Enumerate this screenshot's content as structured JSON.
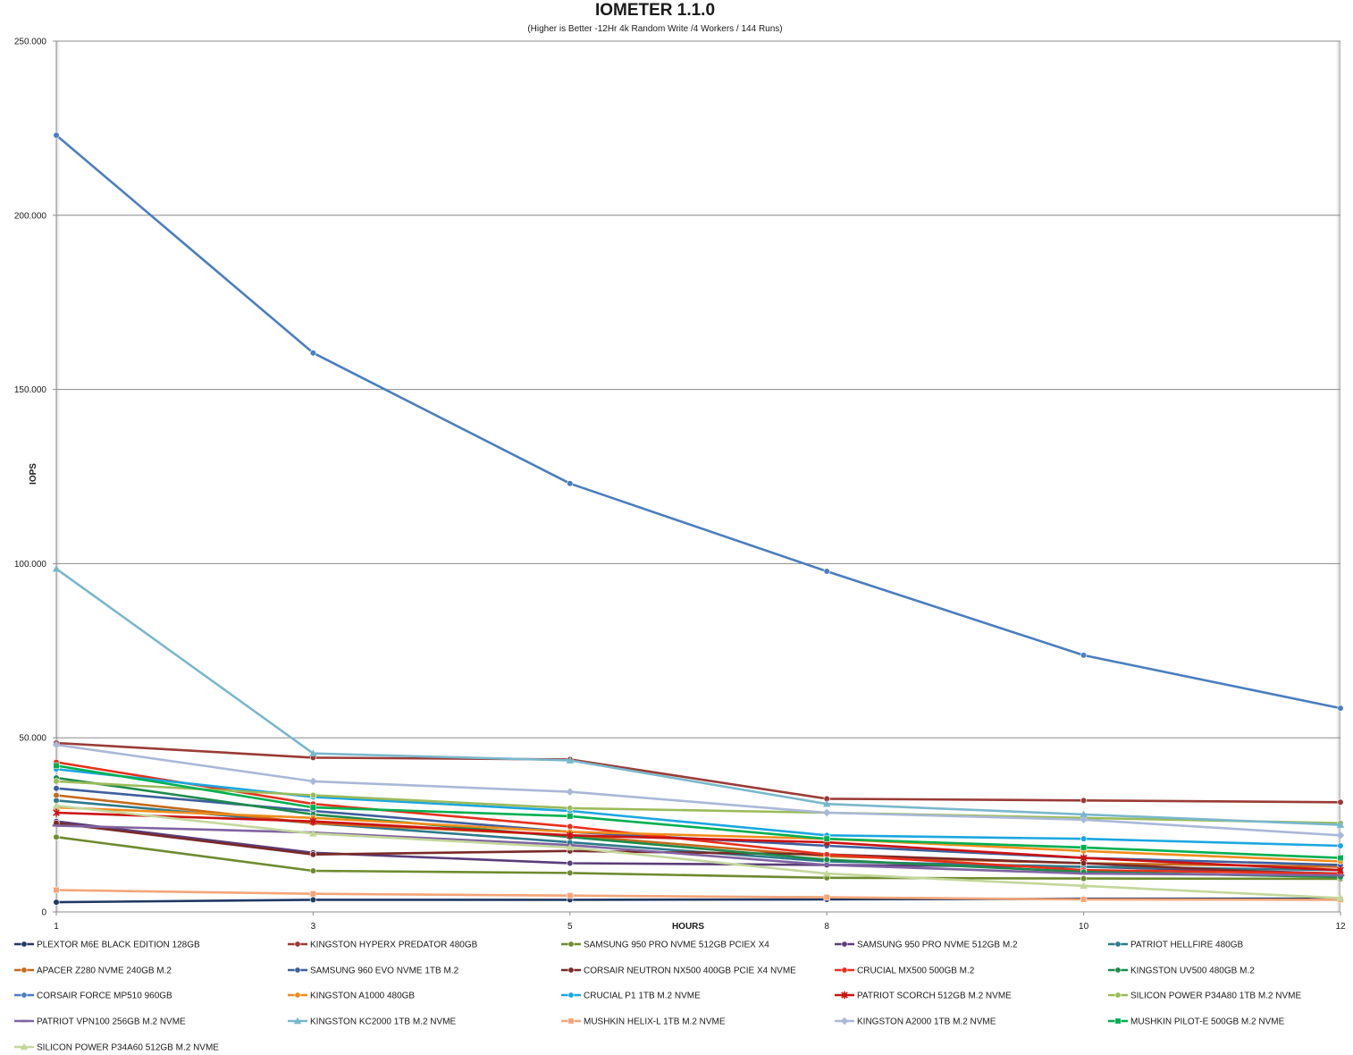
{
  "chart_data": {
    "type": "line",
    "title": "IOMETER 1.1.0",
    "subtitle": "(Higher is Better -12Hr 4k Random Write /4 Workers / 144 Runs)",
    "xlabel": "HOURS",
    "ylabel": "IOPS",
    "categories": [
      "1",
      "3",
      "5",
      "8",
      "10",
      "12"
    ],
    "ylim": [
      0,
      250000
    ],
    "y_ticks": [
      "0",
      "50.000",
      "100.000",
      "150.000",
      "200.000",
      "250.000"
    ],
    "grid": "horizontal",
    "legend_position": "bottom",
    "series": [
      {
        "name": "PLEXTOR M6E BLACK EDITION 128GB",
        "color": "#1f3864",
        "marker": "circle",
        "values": [
          2800,
          3500,
          3500,
          3600,
          3800,
          3800
        ]
      },
      {
        "name": "KINGSTON HYPERX PREDATOR 480GB",
        "color": "#9b3b36",
        "marker": "circle",
        "values": [
          48500,
          44300,
          43800,
          32500,
          32000,
          31500
        ]
      },
      {
        "name": "SAMSUNG 950 PRO NVME 512GB PCIEX X4",
        "color": "#6e8b2f",
        "marker": "circle",
        "values": [
          21500,
          11800,
          11200,
          9800,
          9600,
          9500
        ]
      },
      {
        "name": "SAMSUNG 950 PRO NVME 512GB M.2",
        "color": "#5a3e7a",
        "marker": "circle",
        "values": [
          26000,
          17000,
          14000,
          13500,
          13000,
          11000
        ]
      },
      {
        "name": "PATRIOT HELLFIRE 480GB",
        "color": "#2e7a8c",
        "marker": "circle",
        "values": [
          32000,
          25500,
          20000,
          14500,
          13000,
          12000
        ]
      },
      {
        "name": "APACER Z280 NVME 240GB M.2",
        "color": "#c66a1b",
        "marker": "circle",
        "values": [
          33500,
          25500,
          22000,
          16000,
          14000,
          13000
        ]
      },
      {
        "name": "SAMSUNG 960 EVO NVME 1TB M.2",
        "color": "#3d5f9e",
        "marker": "circle",
        "values": [
          35500,
          29000,
          23000,
          19000,
          15500,
          13500
        ]
      },
      {
        "name": "CORSAIR NEUTRON NX500 400GB PCIE X4 NVME",
        "color": "#7a2a28",
        "marker": "circle",
        "values": [
          25500,
          16500,
          17500,
          16500,
          14000,
          10500
        ]
      },
      {
        "name": "CRUCIAL MX500 500GB M.2",
        "color": "#e8301c",
        "marker": "circle",
        "values": [
          43000,
          31000,
          24500,
          16500,
          12000,
          11000
        ]
      },
      {
        "name": "KINGSTON UV500 480GB M.2",
        "color": "#1e8a4c",
        "marker": "circle",
        "values": [
          38500,
          28000,
          21500,
          15000,
          11500,
          10000
        ]
      },
      {
        "name": "CORSAIR FORCE MP510 960GB",
        "color": "#4a7ec0",
        "marker": "circle",
        "values": [
          223000,
          160500,
          123000,
          97800,
          73700,
          58500
        ]
      },
      {
        "name": "KINGSTON A1000 480GB",
        "color": "#f08c1a",
        "marker": "circle",
        "values": [
          30000,
          27000,
          23000,
          21000,
          17500,
          14500
        ]
      },
      {
        "name": "CRUCIAL P1 1TB M.2 NVME",
        "color": "#1ba7e0",
        "marker": "circle",
        "values": [
          41000,
          33000,
          29000,
          22000,
          21000,
          19000
        ]
      },
      {
        "name": "PATRIOT SCORCH 512GB M.2 NVME",
        "color": "#cc1212",
        "marker": "star",
        "values": [
          28500,
          26000,
          22000,
          20000,
          15500,
          12000
        ]
      },
      {
        "name": "SILICON POWER P34A80 1TB M.2 NVME",
        "color": "#9bbb59",
        "marker": "circle",
        "values": [
          37500,
          33500,
          29800,
          28500,
          27000,
          25500
        ]
      },
      {
        "name": "PATRIOT VPN100 256GB M.2 NVME",
        "color": "#8064a2",
        "marker": "dash",
        "values": [
          24800,
          22800,
          19200,
          13500,
          11000,
          10500
        ]
      },
      {
        "name": "KINGSTON KC2000 1TB M.2 NVME",
        "color": "#79b8cc",
        "marker": "triangle",
        "values": [
          98500,
          45500,
          43500,
          31000,
          28000,
          25000
        ]
      },
      {
        "name": "MUSHKIN HELIX-L 1TB M.2 NVME",
        "color": "#f4a578",
        "marker": "square",
        "values": [
          6300,
          5200,
          4700,
          4200,
          3600,
          3500
        ]
      },
      {
        "name": "KINGSTON A2000 1TB M.2 NVME",
        "color": "#aab8d8",
        "marker": "diamond",
        "values": [
          48000,
          37500,
          34500,
          28500,
          26500,
          22000
        ]
      },
      {
        "name": "MUSHKIN PILOT-E 500GB M.2 NVME",
        "color": "#00b050",
        "marker": "square",
        "values": [
          42000,
          30000,
          27500,
          21000,
          18500,
          15500
        ]
      },
      {
        "name": "SILICON POWER P34A60 512GB M.2 NVME",
        "color": "#c4d79b",
        "marker": "triangle",
        "values": [
          30500,
          22500,
          18500,
          11000,
          7500,
          4000
        ]
      }
    ]
  }
}
